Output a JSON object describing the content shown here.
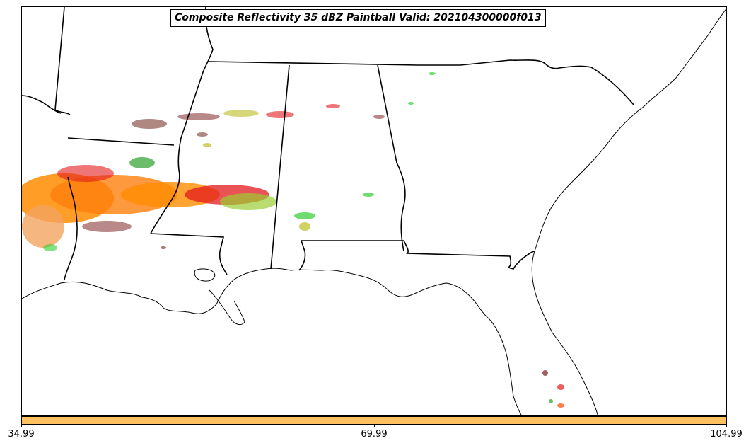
{
  "title": "Composite Reflectivity 35 dBZ Paintball Valid: 202104300000f013",
  "colors": {
    "coastline": "#000000",
    "state_border": "#000000",
    "paintball": [
      "#ff8c00",
      "#ff7f0e",
      "#e31a1c",
      "#b22222",
      "#8b3a3a",
      "#8c564b",
      "#2ca02c",
      "#32cd32",
      "#9acd32",
      "#bcbd22",
      "#f4a460",
      "#ff4500"
    ],
    "colorbar": "#ffc060"
  },
  "colorbar": {
    "ticks": [
      {
        "label": "34.99",
        "value": 34.99
      },
      {
        "label": "69.99",
        "value": 69.99
      },
      {
        "label": "104.99",
        "value": 104.99
      }
    ],
    "min": 34.99,
    "max": 104.99
  }
}
